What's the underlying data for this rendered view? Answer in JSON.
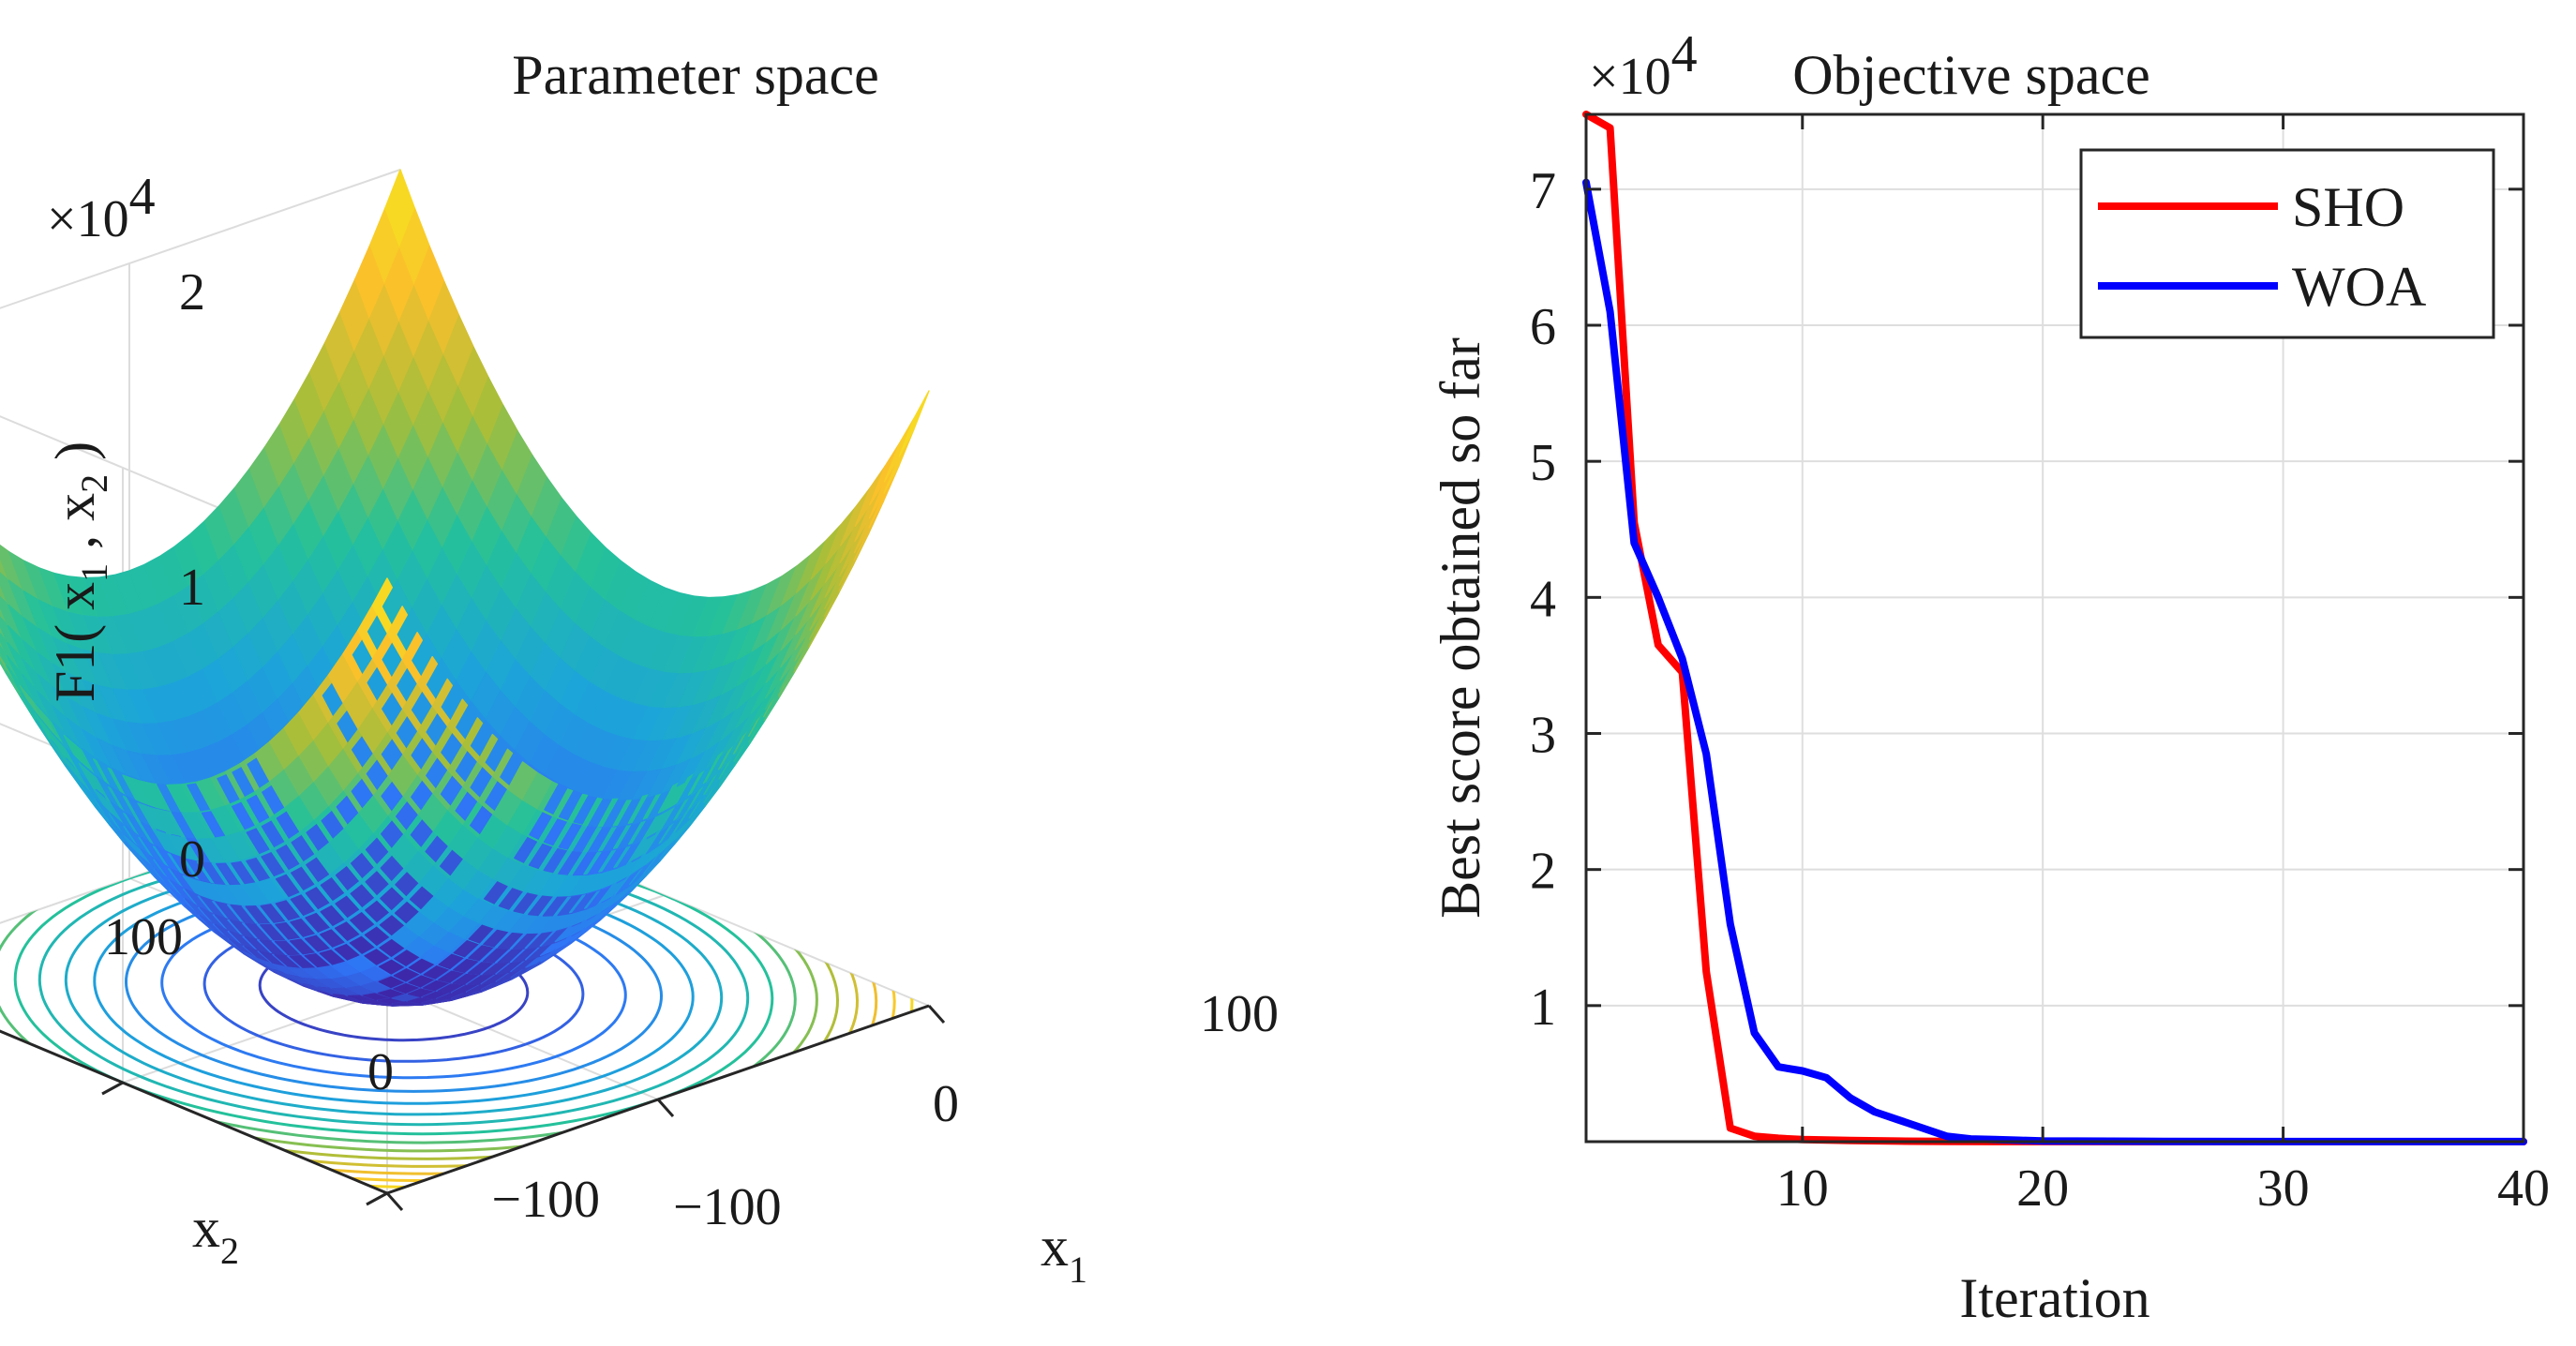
{
  "chart_data": [
    {
      "type": "surface",
      "title": "Parameter space",
      "function_label": "F1( x",
      "function_sub1": "1",
      "function_sep": " , x",
      "function_sub2": "2",
      "function_close": " )",
      "zlabel_multiplier": "×10",
      "zlabel_exponent": "4",
      "x1_label": "x",
      "x1_sub": "1",
      "x2_label": "x",
      "x2_sub": "2",
      "x1_ticks": [
        "−100",
        "0",
        "100"
      ],
      "x2_ticks": [
        "−100",
        "0",
        "100"
      ],
      "z_ticks": [
        "0",
        "1",
        "2"
      ],
      "x1_range": [
        -100,
        100
      ],
      "x2_range": [
        -100,
        100
      ],
      "z_range": [
        0,
        20000
      ],
      "colormap": [
        "#3e26a8",
        "#2f74f6",
        "#1ca5d8",
        "#24c19b",
        "#a6be3a",
        "#fabf2c",
        "#f5e51e"
      ],
      "contour_levels": [
        1250,
        2500,
        3750,
        5000,
        6250,
        7500,
        8750,
        10000,
        11250,
        12500,
        13750,
        15000,
        16250,
        17500,
        18750
      ],
      "grid": true
    },
    {
      "type": "line",
      "title": "Objective space",
      "xlabel": "Iteration",
      "ylabel": "Best score obtained so far",
      "y_multiplier": "×10",
      "y_exponent": "4",
      "xlim": [
        1,
        40
      ],
      "ylim": [
        0,
        75500
      ],
      "x_ticks": [
        10,
        20,
        30,
        40
      ],
      "y_ticks": [
        1,
        2,
        3,
        4,
        5,
        6,
        7
      ],
      "grid": true,
      "legend_position": "top-right",
      "series": [
        {
          "name": "SHO",
          "color": "#ff0000",
          "x": [
            1,
            2,
            3,
            4,
            5,
            6,
            7,
            8,
            9,
            10,
            12,
            14,
            16,
            18,
            20,
            25,
            30,
            35,
            40
          ],
          "y": [
            75500,
            74500,
            45500,
            36500,
            34500,
            12500,
            1000,
            400,
            250,
            150,
            80,
            40,
            20,
            10,
            5,
            2,
            1,
            0,
            0
          ]
        },
        {
          "name": "WOA",
          "color": "#0000ff",
          "x": [
            1,
            2,
            3,
            4,
            5,
            6,
            7,
            8,
            9,
            10,
            11,
            12,
            13,
            14,
            15,
            16,
            17,
            18,
            19,
            20,
            25,
            30,
            35,
            40
          ],
          "y": [
            70500,
            61000,
            44000,
            40000,
            35500,
            28500,
            16000,
            8000,
            5500,
            5200,
            4700,
            3200,
            2200,
            1600,
            1000,
            400,
            200,
            150,
            100,
            50,
            20,
            10,
            5,
            5
          ]
        }
      ]
    }
  ]
}
